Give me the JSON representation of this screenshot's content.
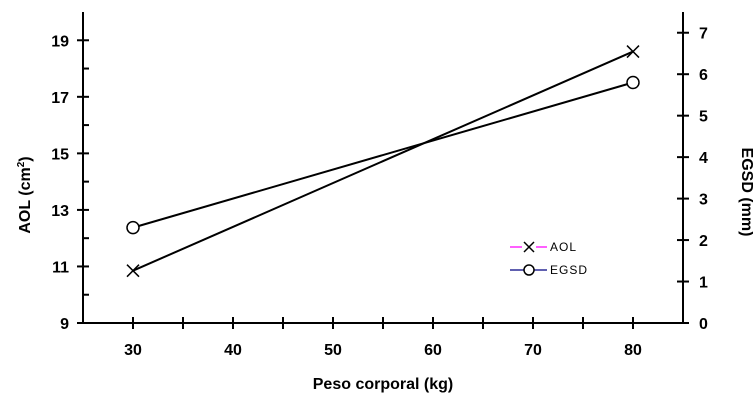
{
  "chart_data": {
    "type": "line",
    "x": [
      30,
      80
    ],
    "xlabel": "Peso corporal (kg)",
    "xlim": [
      25,
      85
    ],
    "xticks": [
      30,
      40,
      50,
      60,
      70,
      80
    ],
    "ylabel_left": {
      "base": "AOL (cm",
      "sup": "2",
      "close": ")"
    },
    "ylim_left": [
      9,
      20
    ],
    "yticks_left": [
      9,
      11,
      13,
      15,
      17,
      19
    ],
    "ylabel_right": "EGSD (mm)",
    "ylim_right": [
      0,
      7.5
    ],
    "yticks_right": [
      0,
      1,
      2,
      3,
      4,
      5,
      6,
      7
    ],
    "grid": false,
    "legend_position": "lower-right",
    "series": [
      {
        "name": "AOL",
        "axis": "left",
        "values": [
          10.85,
          18.6
        ],
        "marker": "x",
        "line_color": "#000000",
        "legend_color": "#ff00ff"
      },
      {
        "name": "EGSD",
        "axis": "right",
        "values": [
          2.3,
          5.8
        ],
        "marker": "circle",
        "line_color": "#000000",
        "legend_color": "#000080"
      }
    ]
  }
}
